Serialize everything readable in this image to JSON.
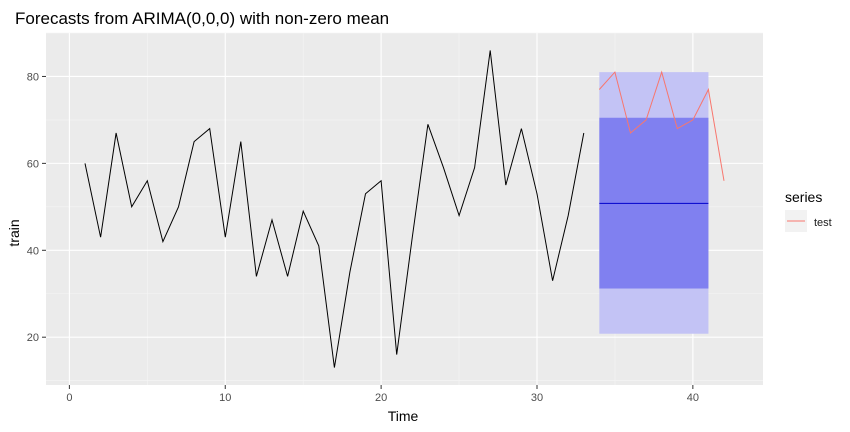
{
  "chart_data": {
    "type": "line",
    "title": "Forecasts from ARIMA(0,0,0) with non-zero mean",
    "xlabel": "Time",
    "ylabel": "train",
    "xlim": [
      -1.5,
      44.5
    ],
    "ylim": [
      9,
      90
    ],
    "xticks": [
      0,
      10,
      20,
      30,
      40
    ],
    "yticks": [
      20,
      40,
      60,
      80
    ],
    "grid": true,
    "train": {
      "x": [
        1,
        2,
        3,
        4,
        5,
        6,
        7,
        8,
        9,
        10,
        11,
        12,
        13,
        14,
        15,
        16,
        17,
        18,
        19,
        20,
        21,
        22,
        23,
        24,
        25,
        26,
        27,
        28,
        29,
        30,
        31,
        32,
        33
      ],
      "y": [
        60,
        43,
        67,
        50,
        56,
        42,
        50,
        65,
        68,
        43,
        65,
        34,
        47,
        34,
        49,
        41,
        13,
        35,
        53,
        56,
        16,
        43,
        69,
        59,
        48,
        59,
        86,
        55,
        68,
        53,
        33,
        48,
        67
      ]
    },
    "forecast": {
      "x_start": 34,
      "x_end": 41,
      "mean": 50.8,
      "pi80": [
        31.2,
        70.5
      ],
      "pi95": [
        20.8,
        81.0
      ]
    },
    "legend": {
      "title": "series",
      "placement": "right",
      "entries": [
        {
          "name": "test",
          "x": [
            34,
            35,
            36,
            37,
            38,
            39,
            40,
            41,
            42
          ],
          "y": [
            77,
            81,
            67,
            70,
            81,
            68,
            70,
            77,
            56
          ]
        }
      ]
    },
    "colors": {
      "panel_bg": "#EBEBEB",
      "grid_major": "#FFFFFF",
      "grid_minor": "#F5F5F5",
      "train_line": "#000000",
      "test_line": "#F8766D",
      "pi95_fill": "#C3C3F5",
      "pi80_fill": "#8080F0",
      "mean_line": "#0000CC",
      "axis_text": "#4D4D4D"
    }
  }
}
